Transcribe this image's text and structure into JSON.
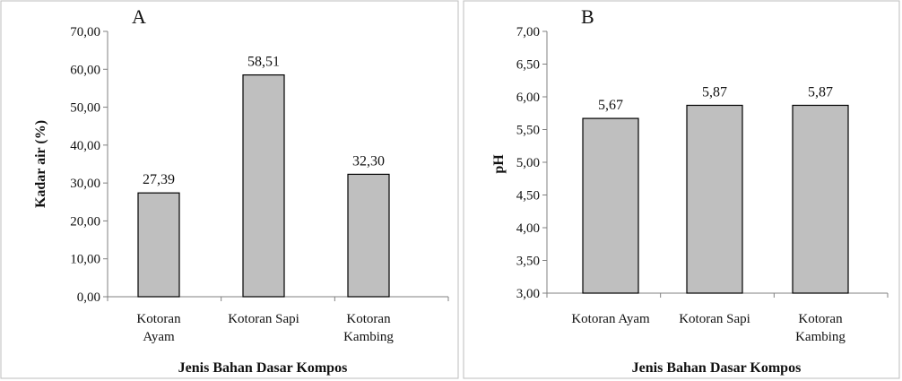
{
  "chart_data": [
    {
      "type": "bar",
      "panel_label": "A",
      "categories": [
        "Kotoran Ayam",
        "Kotoran Sapi",
        "Kotoran Kambing"
      ],
      "category_lines": [
        [
          "Kotoran",
          "Ayam"
        ],
        [
          "Kotoran Sapi"
        ],
        [
          "Kotoran",
          "Kambing"
        ]
      ],
      "values": [
        27.39,
        58.51,
        32.3
      ],
      "value_labels": [
        "27,39",
        "58,51",
        "32,30"
      ],
      "ylabel": "Kadar air (%)",
      "xlabel": "Jenis Bahan Dasar Kompos",
      "ylim": [
        0,
        70
      ],
      "y_ticks": [
        0,
        10,
        20,
        30,
        40,
        50,
        60,
        70
      ],
      "y_tick_labels": [
        "0,00",
        "10,00",
        "20,00",
        "30,00",
        "40,00",
        "50,00",
        "60,00",
        "70,00"
      ],
      "grid": false,
      "bar_color": "#bfbfbf"
    },
    {
      "type": "bar",
      "panel_label": "B",
      "categories": [
        "Kotoran Ayam",
        "Kotoran Sapi",
        "Kotoran Kambing"
      ],
      "category_lines": [
        [
          "Kotoran Ayam"
        ],
        [
          "Kotoran Sapi"
        ],
        [
          "Kotoran",
          "Kambing"
        ]
      ],
      "values": [
        5.67,
        5.87,
        5.87
      ],
      "value_labels": [
        "5,67",
        "5,87",
        "5,87"
      ],
      "ylabel": "pH",
      "xlabel": "Jenis Bahan Dasar Kompos",
      "ylim": [
        3,
        7
      ],
      "y_ticks": [
        3,
        3.5,
        4,
        4.5,
        5,
        5.5,
        6,
        6.5,
        7
      ],
      "y_tick_labels": [
        "3,00",
        "3,50",
        "4,00",
        "4,50",
        "5,00",
        "5,50",
        "6,00",
        "6,50",
        "7,00"
      ],
      "grid": false,
      "bar_color": "#bfbfbf"
    }
  ]
}
